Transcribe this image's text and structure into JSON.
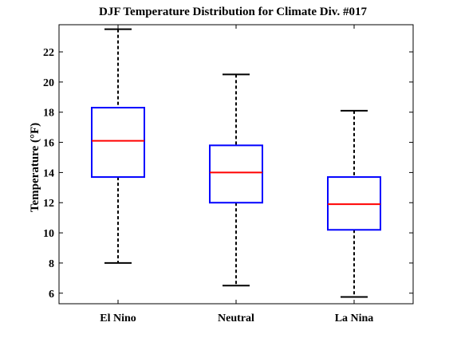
{
  "chart_data": {
    "type": "box",
    "title": "DJF Temperature Distribution for Climate Div. #017",
    "xlabel": "",
    "ylabel": "Temperature (°F)",
    "ylim": [
      5.3,
      23.8
    ],
    "yticks": [
      6,
      8,
      10,
      12,
      14,
      16,
      18,
      20,
      22
    ],
    "grid": false,
    "categories": [
      "El Nino",
      "Neutral",
      "La Nina"
    ],
    "boxes": [
      {
        "category": "El Nino",
        "min": 8.0,
        "q1": 13.7,
        "median": 16.1,
        "q3": 18.3,
        "max": 23.5
      },
      {
        "category": "Neutral",
        "min": 6.5,
        "q1": 12.0,
        "median": 14.0,
        "q3": 15.8,
        "max": 20.5
      },
      {
        "category": "La Nina",
        "min": 5.75,
        "q1": 10.2,
        "median": 11.9,
        "q3": 13.7,
        "max": 18.1
      }
    ],
    "colors": {
      "box": "#0000ff",
      "median": "#ff0000",
      "whisker": "#000000",
      "axes": "#000000"
    }
  }
}
